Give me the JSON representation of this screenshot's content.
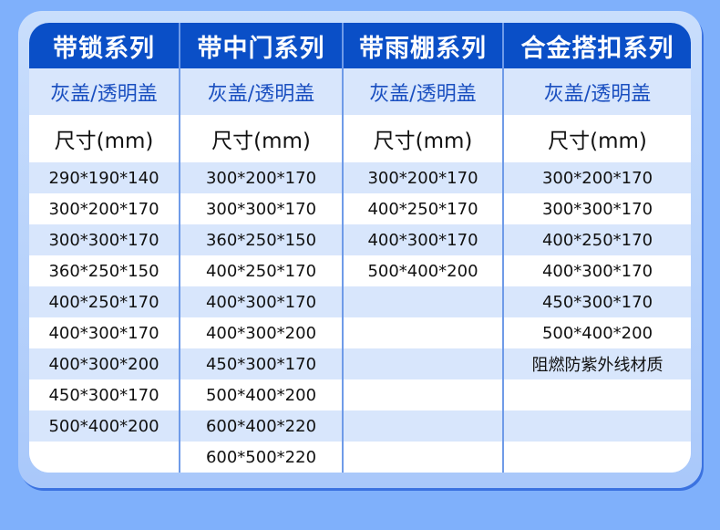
{
  "columns": [
    {
      "title": "带锁系列",
      "cover": "灰盖/透明盖",
      "size_label": "尺寸(mm)",
      "rows": [
        "290*190*140",
        "300*200*170",
        "300*300*170",
        "360*250*150",
        "400*250*170",
        "400*300*170",
        "400*300*200",
        "450*300*170",
        "500*400*200",
        ""
      ]
    },
    {
      "title": "带中门系列",
      "cover": "灰盖/透明盖",
      "size_label": "尺寸(mm)",
      "rows": [
        "300*200*170",
        "300*300*170",
        "360*250*150",
        "400*250*170",
        "400*300*170",
        "400*300*200",
        "450*300*170",
        "500*400*200",
        "600*400*220",
        "600*500*220"
      ]
    },
    {
      "title": "带雨棚系列",
      "cover": "灰盖/透明盖",
      "size_label": "尺寸(mm)",
      "rows": [
        "300*200*170",
        "400*250*170",
        "400*300*170",
        "500*400*200",
        "",
        "",
        "",
        "",
        "",
        ""
      ]
    },
    {
      "title": "合金搭扣系列",
      "cover": "灰盖/透明盖",
      "size_label": "尺寸(mm)",
      "rows": [
        "300*200*170",
        "300*300*170",
        "400*250*170",
        "400*300*170",
        "450*300*170",
        "500*400*200",
        "阻燃防紫外线材质",
        "",
        "",
        ""
      ]
    }
  ],
  "colors": {
    "header": "#0a4fc7",
    "subheader_text": "#1a4fc0",
    "stripe": "#d8e6fc",
    "background": "#7fb0fb"
  }
}
